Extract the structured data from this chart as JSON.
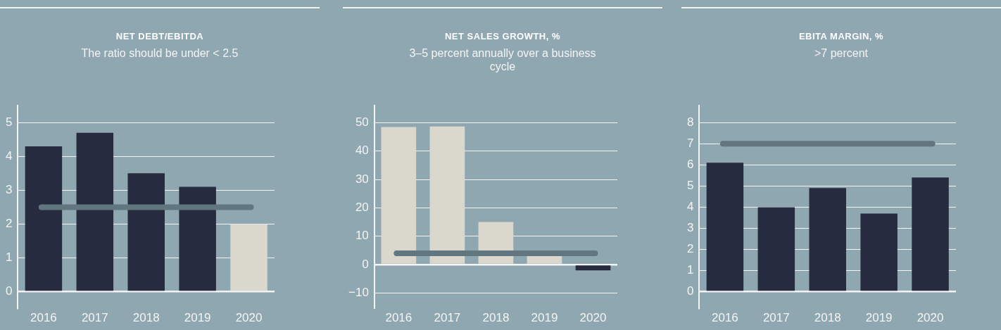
{
  "chart_data": [
    {
      "type": "bar",
      "title": "NET DEBT/EBITDA",
      "subtitle": "The ratio should be under < 2.5",
      "categories": [
        "2016",
        "2017",
        "2018",
        "2019",
        "2020"
      ],
      "values": [
        4.3,
        4.7,
        3.5,
        3.1,
        2.0
      ],
      "colors": [
        "#262b3f",
        "#262b3f",
        "#262b3f",
        "#262b3f",
        "#dad8cd"
      ],
      "ylim": [
        -0.5,
        5.5
      ],
      "yticks": [
        0,
        1,
        2,
        3,
        4,
        5
      ],
      "grid": "y",
      "legend": false,
      "ref_lines": [
        {
          "axis": "y",
          "value": 2.5,
          "color": "#627680"
        }
      ]
    },
    {
      "type": "bar",
      "title": "NET SALES GROWTH, %",
      "subtitle": "3–5 percent annually over a business cycle",
      "categories": [
        "2016",
        "2017",
        "2018",
        "2019",
        "2020"
      ],
      "values": [
        48.5,
        48.7,
        15,
        3.5,
        -2
      ],
      "colors": [
        "#dad8cd",
        "#dad8cd",
        "#dad8cd",
        "#dad8cd",
        "#262b3f"
      ],
      "ylim": [
        -15.5,
        56
      ],
      "yticks": [
        -10,
        0,
        10,
        20,
        30,
        40,
        50
      ],
      "grid": "y",
      "legend": false,
      "ref_lines": [
        {
          "axis": "y",
          "value": 4,
          "color": "#627680"
        }
      ]
    },
    {
      "type": "bar",
      "title": "EBITA MARGIN, %",
      "subtitle": ">7 percent",
      "categories": [
        "2016",
        "2017",
        "2018",
        "2019",
        "2020"
      ],
      "values": [
        6.1,
        4.0,
        4.9,
        3.7,
        5.4
      ],
      "colors": [
        "#262b3f",
        "#262b3f",
        "#262b3f",
        "#262b3f",
        "#262b3f"
      ],
      "ylim": [
        -0.8,
        8.8
      ],
      "yticks": [
        0,
        1,
        2,
        3,
        4,
        5,
        6,
        7,
        8
      ],
      "grid": "y",
      "legend": false,
      "ref_lines": [
        {
          "axis": "y",
          "value": 7,
          "color": "#627680"
        }
      ]
    }
  ]
}
